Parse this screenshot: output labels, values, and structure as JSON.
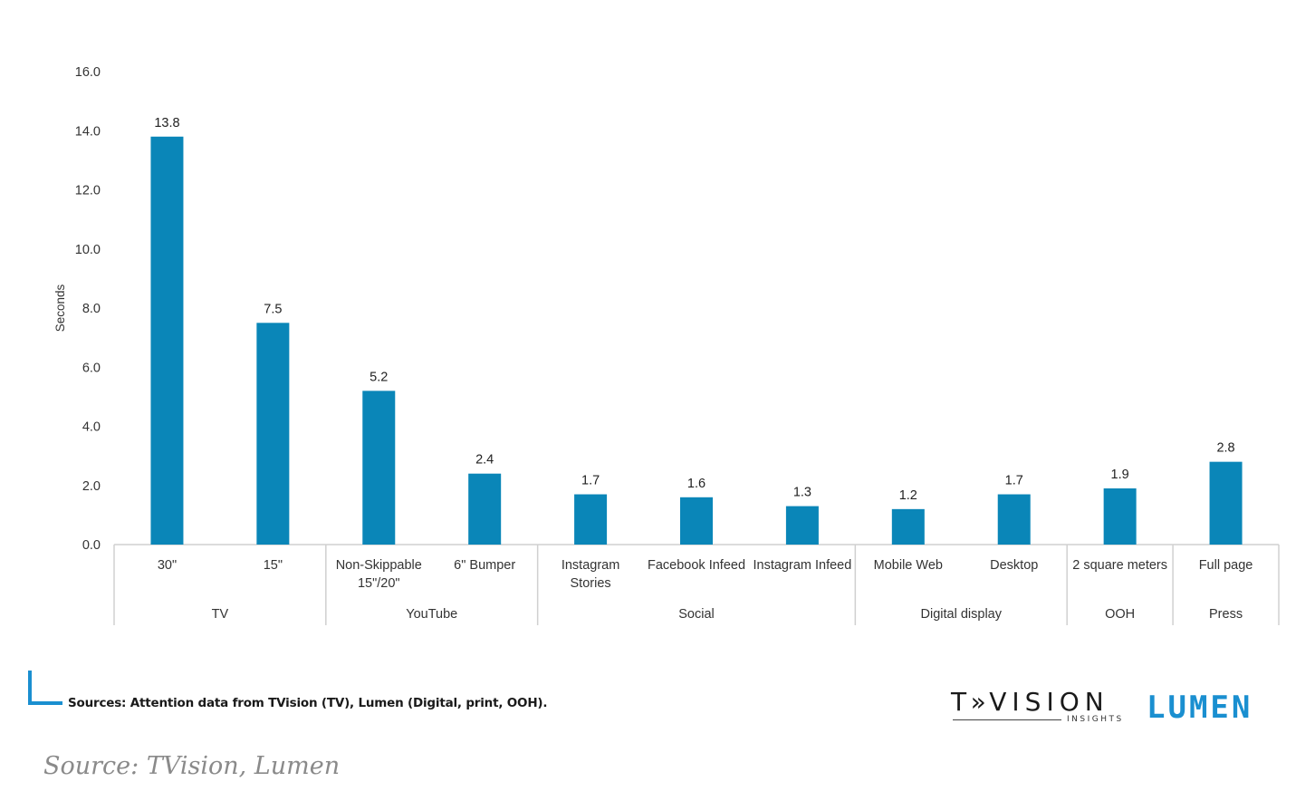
{
  "chart_data": {
    "type": "bar",
    "ylabel": "Seconds",
    "ylim": [
      0,
      16
    ],
    "yticks": [
      "0.0",
      "2.0",
      "4.0",
      "6.0",
      "8.0",
      "10.0",
      "12.0",
      "14.0",
      "16.0"
    ],
    "bar_color": "#0a86b8",
    "categories": [
      "30\"",
      "15\"",
      "Non-Skippable 15\"/20\"",
      "6\" Bumper",
      "Instagram Stories",
      "Facebook Infeed",
      "Instagram Infeed",
      "Mobile Web",
      "Desktop",
      "2 square meters",
      "Full page"
    ],
    "values": [
      13.8,
      7.5,
      5.2,
      2.4,
      1.7,
      1.6,
      1.3,
      1.2,
      1.7,
      1.9,
      2.8
    ],
    "value_labels": [
      "13.8",
      "7.5",
      "5.2",
      "2.4",
      "1.7",
      "1.6",
      "1.3",
      "1.2",
      "1.7",
      "1.9",
      "2.8"
    ],
    "groups": [
      {
        "name": "TV",
        "count": 2
      },
      {
        "name": "YouTube",
        "count": 2
      },
      {
        "name": "Social",
        "count": 3
      },
      {
        "name": "Digital display",
        "count": 2
      },
      {
        "name": "OOH",
        "count": 1
      },
      {
        "name": "Press",
        "count": 1
      }
    ]
  },
  "footer": {
    "sources": "Sources: Attention data from TVision (TV), Lumen (Digital, print, OOH).",
    "caption": "Source: TVision, Lumen"
  },
  "logos": {
    "tvision": "T»VISION",
    "tvision_sub": "INSIGHTS",
    "lumen": "LUMEN"
  }
}
